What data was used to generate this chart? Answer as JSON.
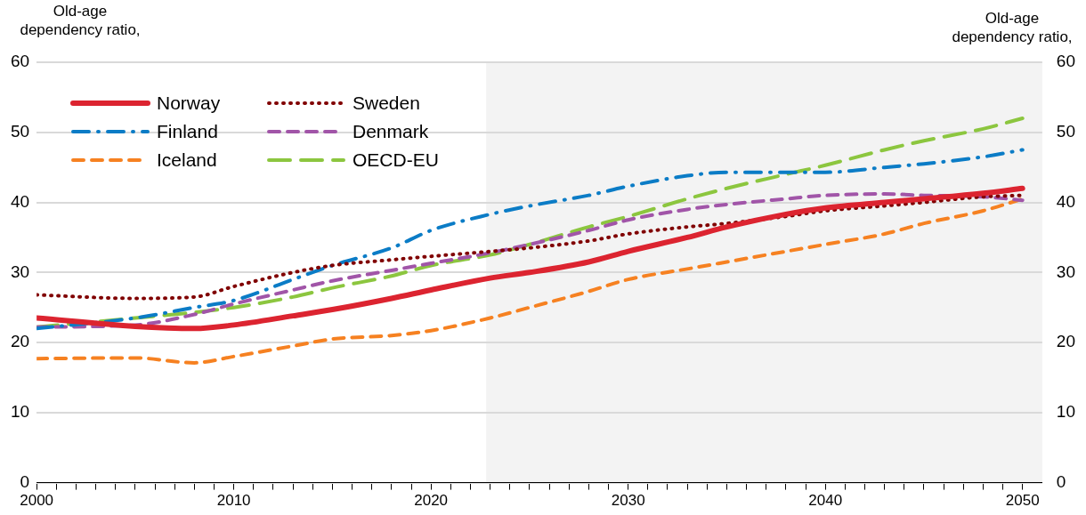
{
  "chart_data": {
    "type": "line",
    "ylabel": "Old-age dependency ratio,",
    "y2label": "Old-age dependency ratio,",
    "xlim": [
      2000,
      2051
    ],
    "xticks": [
      2000,
      {
        "value": 2001,
        "label": null
      },
      {
        "value": 2002,
        "label": null
      },
      {
        "value": 2003,
        "label": null
      },
      {
        "value": 2004,
        "label": null
      },
      {
        "value": 2005,
        "label": null
      },
      {
        "value": 2006,
        "label": null
      },
      {
        "value": 2007,
        "label": null
      },
      {
        "value": 2008,
        "label": null
      },
      {
        "value": 2009,
        "label": null
      },
      2010,
      {
        "value": 2011,
        "label": null
      },
      {
        "value": 2012,
        "label": null
      },
      {
        "value": 2013,
        "label": null
      },
      {
        "value": 2014,
        "label": null
      },
      {
        "value": 2015,
        "label": null
      },
      {
        "value": 2016,
        "label": null
      },
      {
        "value": 2017,
        "label": null
      },
      {
        "value": 2018,
        "label": null
      },
      {
        "value": 2019,
        "label": null
      },
      2020,
      {
        "value": 2021,
        "label": null
      },
      {
        "value": 2022,
        "label": null
      },
      {
        "value": 2023,
        "label": null
      },
      {
        "value": 2024,
        "label": null
      },
      {
        "value": 2025,
        "label": null
      },
      {
        "value": 2026,
        "label": null
      },
      {
        "value": 2027,
        "label": null
      },
      {
        "value": 2028,
        "label": null
      },
      {
        "value": 2029,
        "label": null
      },
      2030,
      {
        "value": 2031,
        "label": null
      },
      {
        "value": 2032,
        "label": null
      },
      {
        "value": 2033,
        "label": null
      },
      {
        "value": 2034,
        "label": null
      },
      {
        "value": 2035,
        "label": null
      },
      {
        "value": 2036,
        "label": null
      },
      {
        "value": 2037,
        "label": null
      },
      {
        "value": 2038,
        "label": null
      },
      {
        "value": 2039,
        "label": null
      },
      2040,
      {
        "value": 2041,
        "label": null
      },
      {
        "value": 2042,
        "label": null
      },
      {
        "value": 2043,
        "label": null
      },
      {
        "value": 2044,
        "label": null
      },
      {
        "value": 2045,
        "label": null
      },
      {
        "value": 2046,
        "label": null
      },
      {
        "value": 2047,
        "label": null
      },
      {
        "value": 2048,
        "label": null
      },
      {
        "value": 2049,
        "label": null
      },
      2050
    ],
    "ylim": [
      0,
      60
    ],
    "yticks": [
      0,
      10,
      20,
      30,
      40,
      50,
      60
    ],
    "y2lim": [
      0,
      60
    ],
    "y2ticks": [
      0,
      10,
      20,
      30,
      40,
      50,
      60
    ],
    "grid": "y",
    "legend": "top left",
    "marker": "none",
    "bands": [
      {
        "axis": "x",
        "from": 2022.8,
        "to": 2051,
        "color": "#f3f3f3"
      }
    ],
    "x": [
      2000,
      2005,
      2008,
      2010,
      2013,
      2015,
      2018,
      2020,
      2023,
      2025,
      2028,
      2030,
      2033,
      2035,
      2038,
      2040,
      2043,
      2045,
      2048,
      2050
    ],
    "series": [
      {
        "name": "Norway",
        "color": "#dc2430",
        "line_style": "solid",
        "values": [
          23.5,
          22.3,
          22.0,
          22.5,
          23.8,
          24.7,
          26.3,
          27.5,
          29.2,
          30,
          31.5,
          33,
          35,
          36.5,
          38.3,
          39.2,
          40,
          40.5,
          41.3,
          42
        ]
      },
      {
        "name": "Sweden",
        "color": "#800000",
        "line_style": "dotted",
        "values": [
          26.8,
          26.3,
          26.5,
          28,
          30,
          31,
          31.8,
          32.3,
          33,
          33.5,
          34.5,
          35.5,
          36.5,
          37,
          38,
          38.8,
          39.5,
          40,
          40.8,
          41
        ]
      },
      {
        "name": "Finland",
        "color": "#0b7cc6",
        "line_style": "dashdot",
        "values": [
          22,
          23.5,
          25,
          26,
          29,
          31,
          33.5,
          36,
          38.3,
          39.5,
          41,
          42.3,
          43.8,
          44.3,
          44.3,
          44.3,
          45,
          45.5,
          46.5,
          47.5
        ]
      },
      {
        "name": "Denmark",
        "color": "#a155a8",
        "line_style": "dashed",
        "values": [
          22.2,
          22.5,
          24,
          25.5,
          27.5,
          28.8,
          30.3,
          31.3,
          32.8,
          34,
          36,
          37.5,
          39,
          39.7,
          40.5,
          41,
          41.2,
          41,
          40.8,
          40.3
        ]
      },
      {
        "name": "Iceland",
        "color": "#f68121",
        "line_style": "dashed",
        "values": [
          17.7,
          17.8,
          17.1,
          18,
          19.5,
          20.5,
          21,
          21.7,
          23.5,
          25,
          27.3,
          29,
          30.5,
          31.5,
          33,
          34,
          35.5,
          37,
          38.8,
          40.5
        ]
      },
      {
        "name": "OECD-EU",
        "color": "#8cc63f",
        "line_style": "longdash",
        "values": [
          22.2,
          23.5,
          24.3,
          25,
          26.5,
          27.8,
          29.5,
          31,
          32.5,
          34,
          36.5,
          38,
          40.5,
          42,
          44,
          45.3,
          47.5,
          48.8,
          50.5,
          52
        ]
      }
    ]
  }
}
